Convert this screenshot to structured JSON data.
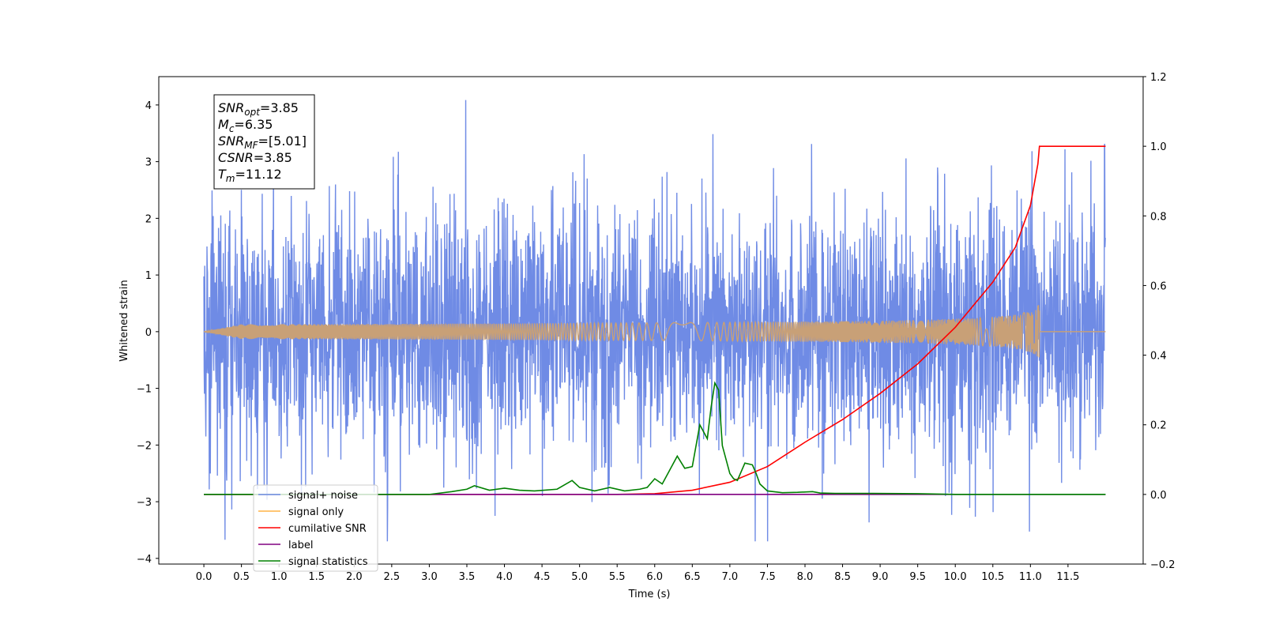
{
  "chart_data": {
    "type": "line",
    "xlabel": "Time (s)",
    "ylabel": "Whitened strain",
    "xlim": [
      -0.6,
      12.5
    ],
    "ylim": [
      -4.1,
      4.5
    ],
    "y2lim": [
      -0.2,
      1.2
    ],
    "x_ticks": [
      "0.0",
      "0.5",
      "1.0",
      "1.5",
      "2.0",
      "2.5",
      "3.0",
      "3.5",
      "4.0",
      "4.5",
      "5.0",
      "5.5",
      "6.0",
      "6.5",
      "7.0",
      "7.5",
      "8.0",
      "8.5",
      "9.0",
      "9.5",
      "10.0",
      "10.5",
      "11.0",
      "11.5"
    ],
    "y_ticks": [
      "4",
      "3",
      "2",
      "1",
      "0",
      "−1",
      "−2",
      "−3",
      "−4"
    ],
    "y2_ticks": [
      "1.2",
      "1.0",
      "0.8",
      "0.6",
      "0.4",
      "0.2",
      "0.0",
      "−0.2"
    ],
    "series": [
      {
        "name": "signal+ noise",
        "color": "#6f8be5",
        "axis": "left",
        "x_range": [
          0.0,
          12.0
        ],
        "noise_sigma": 1.0,
        "approx_range": [
          -3.7,
          4.1
        ]
      },
      {
        "name": "signal only",
        "color": "#c8a077",
        "axis": "left",
        "x_range": [
          0.0,
          12.0
        ],
        "chirp_end": 11.12,
        "max_amplitude": 0.5
      },
      {
        "name": "cumilative SNR",
        "color": "#ff0000",
        "axis": "right",
        "x": [
          0,
          5.5,
          6.0,
          6.5,
          7.0,
          7.5,
          8.0,
          8.5,
          9.0,
          9.5,
          10.0,
          10.5,
          10.8,
          11.0,
          11.1,
          11.12,
          12.0
        ],
        "values": [
          0,
          0,
          0.002,
          0.012,
          0.035,
          0.08,
          0.15,
          0.215,
          0.29,
          0.375,
          0.48,
          0.61,
          0.71,
          0.83,
          0.95,
          1.0,
          1.0
        ]
      },
      {
        "name": "label",
        "color": "#800080",
        "axis": "right",
        "x": [
          0,
          12.0
        ],
        "values": [
          0,
          0
        ]
      },
      {
        "name": "signal statistics",
        "color": "#008000",
        "axis": "right",
        "x": [
          0,
          3.0,
          3.3,
          3.5,
          3.6,
          3.8,
          4.0,
          4.2,
          4.4,
          4.7,
          4.9,
          5.0,
          5.2,
          5.4,
          5.6,
          5.8,
          5.9,
          6.0,
          6.1,
          6.2,
          6.3,
          6.4,
          6.5,
          6.6,
          6.7,
          6.75,
          6.8,
          6.85,
          6.9,
          7.0,
          7.05,
          7.1,
          7.2,
          7.3,
          7.35,
          7.4,
          7.5,
          7.7,
          7.9,
          8.1,
          8.2,
          8.4,
          8.6,
          8.9,
          9.5,
          10.0,
          12.0
        ],
        "values": [
          0,
          0,
          0.008,
          0.015,
          0.025,
          0.012,
          0.018,
          0.012,
          0.01,
          0.015,
          0.04,
          0.02,
          0.01,
          0.02,
          0.01,
          0.015,
          0.02,
          0.045,
          0.03,
          0.07,
          0.11,
          0.075,
          0.08,
          0.2,
          0.16,
          0.25,
          0.32,
          0.3,
          0.14,
          0.06,
          0.045,
          0.04,
          0.09,
          0.085,
          0.06,
          0.03,
          0.01,
          0.005,
          0.006,
          0.008,
          0.004,
          0.003,
          0.003,
          0.003,
          0.002,
          0.0,
          0.0
        ]
      }
    ],
    "legend": {
      "location": "lower-left",
      "entries": [
        {
          "label": "signal+ noise",
          "color": "#6f8be5"
        },
        {
          "label": "signal only",
          "color": "#ffb347"
        },
        {
          "label": "cumilative SNR",
          "color": "#ff0000"
        },
        {
          "label": "label",
          "color": "#800080"
        },
        {
          "label": "signal statistics",
          "color": "#008000"
        }
      ]
    },
    "annotation": {
      "lines": [
        {
          "sym": "SNR",
          "sub": "opt",
          "rest": "=3.85"
        },
        {
          "sym": "M",
          "sub": "c",
          "rest": "=6.35"
        },
        {
          "sym": "SNR",
          "sub": "MF",
          "rest": "=[5.01]"
        },
        {
          "sym": "CSNR",
          "sub": "",
          "rest": "=3.85"
        },
        {
          "sym": "T",
          "sub": "m",
          "rest": "=11.12"
        }
      ]
    },
    "grid": false
  }
}
